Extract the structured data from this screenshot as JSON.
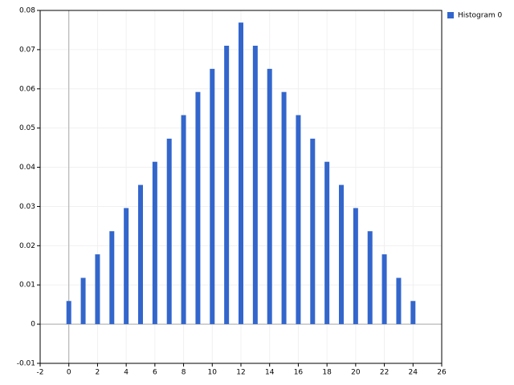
{
  "chart_data": {
    "type": "bar",
    "x": [
      0,
      1,
      2,
      3,
      4,
      5,
      6,
      7,
      8,
      9,
      10,
      11,
      12,
      13,
      14,
      15,
      16,
      17,
      18,
      19,
      20,
      21,
      22,
      23,
      24
    ],
    "series": [
      {
        "name": "Histogram 0",
        "color": "#3366cc",
        "values": [
          0.0059,
          0.0118,
          0.0178,
          0.0237,
          0.0296,
          0.0355,
          0.0414,
          0.0473,
          0.0533,
          0.0592,
          0.0651,
          0.071,
          0.0769,
          0.071,
          0.0651,
          0.0592,
          0.0533,
          0.0473,
          0.0414,
          0.0355,
          0.0296,
          0.0237,
          0.0178,
          0.0118,
          0.0059
        ]
      }
    ],
    "xlim": [
      -2,
      26
    ],
    "xticks": [
      -2,
      0,
      2,
      4,
      6,
      8,
      10,
      12,
      14,
      16,
      18,
      20,
      22,
      24,
      26
    ],
    "ylim": [
      -0.01,
      0.08
    ],
    "yticks": [
      -0.01,
      0,
      0.01,
      0.02,
      0.03,
      0.04,
      0.05,
      0.06,
      0.07,
      0.08
    ],
    "grid": true,
    "legend": "top-right"
  }
}
